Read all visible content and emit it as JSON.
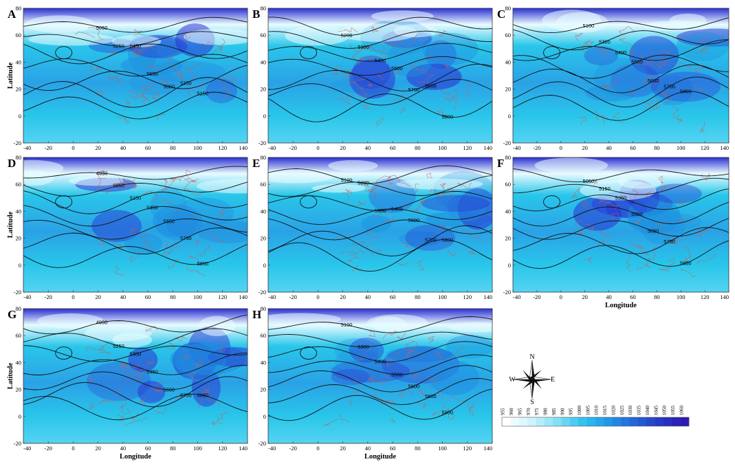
{
  "figure": {
    "colors": {
      "frame": "#333333",
      "contour": "#111111",
      "border": "#c0605a",
      "low": "#e8fbff",
      "mid": "#29c6ea",
      "high": "#2b2fd1"
    }
  },
  "axes": {
    "x_ticks": [
      "-40",
      "-20",
      "0",
      "20",
      "40",
      "60",
      "80",
      "100",
      "120",
      "140"
    ],
    "y_ticks": [
      "80",
      "60",
      "40",
      "20",
      "0",
      "-20"
    ],
    "x_title": "Longitude",
    "y_title": "Latitude"
  },
  "panels": [
    {
      "letter": "A",
      "show_xlabel": false,
      "show_ylabel": true,
      "contours": [
        "5050",
        "5250",
        "5450",
        "5650",
        "5850",
        "5350",
        "5150"
      ]
    },
    {
      "letter": "B",
      "show_xlabel": false,
      "show_ylabel": false,
      "contours": [
        "5200",
        "5300",
        "5400",
        "5500",
        "5700",
        "5600",
        "5800"
      ]
    },
    {
      "letter": "C",
      "show_xlabel": false,
      "show_ylabel": false,
      "contours": [
        "5100",
        "5300",
        "5400",
        "5500",
        "5600",
        "5700",
        "5800"
      ]
    },
    {
      "letter": "D",
      "show_xlabel": false,
      "show_ylabel": true,
      "contours": [
        "4950",
        "5050",
        "5150",
        "5350",
        "5550",
        "5750",
        "5850"
      ]
    },
    {
      "letter": "E",
      "show_xlabel": false,
      "show_ylabel": false,
      "contours": [
        "5100",
        "5200",
        "5300",
        "5400",
        "5600",
        "5700",
        "5800"
      ]
    },
    {
      "letter": "F",
      "show_xlabel": true,
      "show_ylabel": false,
      "contours": [
        "5050",
        "5150",
        "5350",
        "5550",
        "5650",
        "5750",
        "5850"
      ]
    },
    {
      "letter": "G",
      "show_xlabel": true,
      "show_ylabel": true,
      "contours": [
        "4950",
        "5250",
        "5350",
        "5450",
        "5650",
        "5750",
        "5850"
      ]
    },
    {
      "letter": "H",
      "show_xlabel": true,
      "show_ylabel": false,
      "contours": [
        "5100",
        "5300",
        "5400",
        "5500",
        "5600",
        "5800",
        "5900"
      ]
    }
  ],
  "legend": {
    "labels": [
      "955",
      "960",
      "965",
      "970",
      "975",
      "980",
      "985",
      "990",
      "995",
      "1000",
      "1005",
      "1010",
      "1015",
      "1020",
      "1025",
      "1030",
      "1035",
      "1040",
      "1045",
      "1050",
      "1055",
      "1060"
    ],
    "colors": [
      "#ffffff",
      "#eefcff",
      "#dff8ff",
      "#cdf3fd",
      "#b6edfb",
      "#9de6f8",
      "#84def6",
      "#69d5f3",
      "#4ecbf0",
      "#36c1ee",
      "#2ab5ec",
      "#26a6ea",
      "#2496e6",
      "#2386e2",
      "#2276dc",
      "#2267d6",
      "#2358d0",
      "#2449ca",
      "#263bc4",
      "#282fbe",
      "#2a24b8",
      "#2d1ab0"
    ]
  },
  "compass": {
    "n": "N",
    "s": "S",
    "e": "E",
    "w": "W"
  }
}
